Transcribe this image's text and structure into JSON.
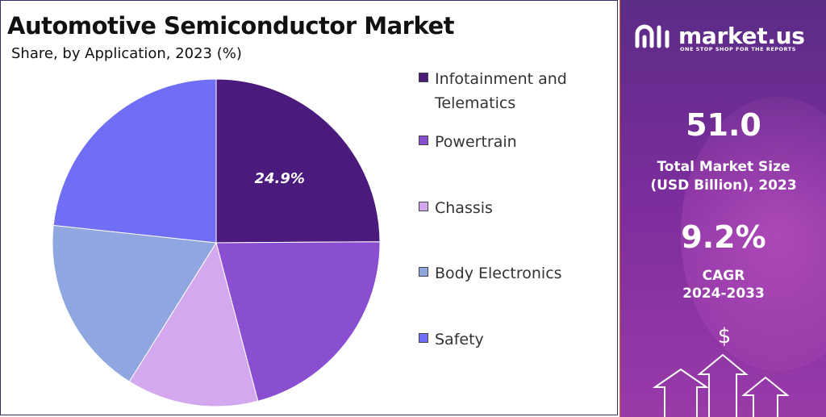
{
  "chart_data": {
    "type": "pie",
    "title": "Automotive Semiconductor Market",
    "subtitle": "Share, by Application, 2023 (%)",
    "slices": [
      {
        "label": "Infotainment and Telematics",
        "value": 24.9,
        "color": "#4a1a7d",
        "data_label": "24.9%"
      },
      {
        "label": "Powertrain",
        "value": 21.0,
        "color": "#8a4fd0",
        "data_label": ""
      },
      {
        "label": "Chassis",
        "value": 13.0,
        "color": "#d4a8ef",
        "data_label": ""
      },
      {
        "label": "Body Electronics",
        "value": 17.8,
        "color": "#8fa6e0",
        "data_label": ""
      },
      {
        "label": "Safety",
        "value": 23.3,
        "color": "#6f6ef5",
        "data_label": ""
      }
    ],
    "start_angle_deg": 0,
    "direction": "clockwise",
    "legend_position": "right"
  },
  "panel": {
    "brand_name": "market.us",
    "tagline": "ONE STOP SHOP FOR THE REPORTS",
    "market_size_value": "51.0",
    "market_size_caption_line1": "Total Market Size",
    "market_size_caption_line2": "(USD Billion), 2023",
    "cagr_value": "9.2%",
    "cagr_caption_line1": "CAGR",
    "cagr_caption_line2": "2024-2033",
    "dollar_symbol": "$"
  },
  "colors": {
    "panel_top": "#5b2c86",
    "panel_bottom": "#9a3aa9",
    "accent_border": "#c66a2e"
  },
  "icons": {
    "logo": "market-us-logo-icon",
    "growth": "growth-arrows-icon"
  }
}
